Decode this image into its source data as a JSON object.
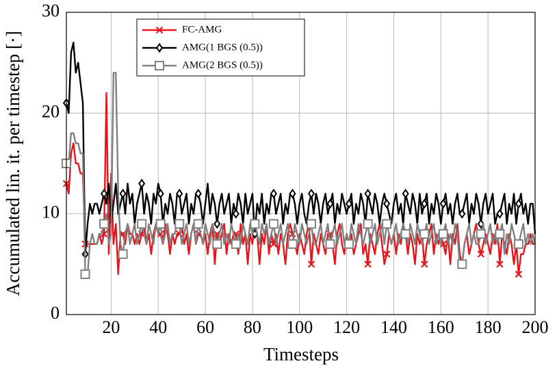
{
  "chart_data": {
    "type": "line",
    "xlabel": "Timesteps",
    "ylabel": "Accumulated lin. it. per timestep [·]",
    "x": [
      1,
      2,
      3,
      4,
      5,
      6,
      7,
      8,
      9,
      10,
      11,
      12,
      13,
      14,
      15,
      16,
      17,
      18,
      19,
      20,
      21,
      22,
      23,
      24,
      25,
      26,
      27,
      28,
      29,
      30,
      31,
      32,
      33,
      34,
      35,
      36,
      37,
      38,
      39,
      40,
      41,
      42,
      43,
      44,
      45,
      46,
      47,
      48,
      49,
      50,
      51,
      52,
      53,
      54,
      55,
      56,
      57,
      58,
      59,
      60,
      61,
      62,
      63,
      64,
      65,
      66,
      67,
      68,
      69,
      70,
      71,
      72,
      73,
      74,
      75,
      76,
      77,
      78,
      79,
      80,
      81,
      82,
      83,
      84,
      85,
      86,
      87,
      88,
      89,
      90,
      91,
      92,
      93,
      94,
      95,
      96,
      97,
      98,
      99,
      100,
      101,
      102,
      103,
      104,
      105,
      106,
      107,
      108,
      109,
      110,
      111,
      112,
      113,
      114,
      115,
      116,
      117,
      118,
      119,
      120,
      121,
      122,
      123,
      124,
      125,
      126,
      127,
      128,
      129,
      130,
      131,
      132,
      133,
      134,
      135,
      136,
      137,
      138,
      139,
      140,
      141,
      142,
      143,
      144,
      145,
      146,
      147,
      148,
      149,
      150,
      151,
      152,
      153,
      154,
      155,
      156,
      157,
      158,
      159,
      160,
      161,
      162,
      163,
      164,
      165,
      166,
      167,
      168,
      169,
      170,
      171,
      172,
      173,
      174,
      175,
      176,
      177,
      178,
      179,
      180,
      181,
      182,
      183,
      184,
      185,
      186,
      187,
      188,
      189,
      190,
      191,
      192,
      193,
      194,
      195,
      196,
      197,
      198,
      199,
      200
    ],
    "series": [
      {
        "name": "FC-AMG",
        "color": "#e8141c",
        "marker": "x",
        "values": [
          13,
          12,
          16,
          17,
          15,
          15,
          14,
          14,
          7,
          7,
          7,
          7,
          7,
          7,
          8,
          7,
          8,
          22,
          6,
          14,
          7,
          9,
          4,
          8,
          8,
          7,
          9,
          8,
          8,
          7,
          8,
          7,
          8,
          9,
          7,
          8,
          6,
          8,
          9,
          8,
          8,
          7,
          9,
          8,
          6,
          8,
          7,
          8,
          8,
          9,
          7,
          8,
          6,
          8,
          9,
          7,
          8,
          8,
          7,
          8,
          6,
          8,
          9,
          5,
          8,
          7,
          8,
          9,
          6,
          8,
          7,
          8,
          8,
          6,
          9,
          7,
          8,
          5,
          8,
          7,
          9,
          8,
          5,
          8,
          7,
          9,
          6,
          8,
          7,
          8,
          6,
          8,
          7,
          5,
          8,
          9,
          8,
          7,
          6,
          8,
          7,
          6,
          8,
          9,
          5,
          8,
          7,
          6,
          8,
          7,
          6,
          8,
          8,
          7,
          5,
          8,
          9,
          7,
          6,
          8,
          7,
          8,
          6,
          7,
          8,
          9,
          6,
          7,
          5,
          8,
          7,
          6,
          8,
          9,
          7,
          5,
          6,
          8,
          7,
          8,
          6,
          8,
          7,
          9,
          8,
          6,
          8,
          7,
          5,
          8,
          7,
          8,
          5,
          7,
          8,
          9,
          6,
          8,
          7,
          8,
          7,
          6,
          8,
          5,
          8,
          7,
          9,
          6,
          5,
          7,
          8,
          6,
          7,
          8,
          9,
          7,
          6,
          7,
          8,
          7,
          6,
          8,
          7,
          9,
          5,
          8,
          7,
          6,
          8,
          7,
          5,
          7,
          4,
          6,
          6,
          7,
          7,
          8,
          7,
          7
        ]
      },
      {
        "name": "AMG(1 BGS (0.5))",
        "color": "#000000",
        "marker": "diamond",
        "values": [
          21,
          20,
          26,
          27,
          24,
          25,
          23,
          21,
          6,
          9,
          11,
          10,
          11,
          11,
          10,
          11,
          12,
          11,
          13,
          9,
          11,
          13,
          10,
          11,
          12,
          10,
          13,
          11,
          12,
          9,
          11,
          12,
          13,
          10,
          12,
          11,
          9,
          12,
          11,
          13,
          12,
          9,
          11,
          10,
          12,
          11,
          9,
          12,
          12,
          10,
          11,
          12,
          9,
          11,
          10,
          12,
          12,
          11,
          9,
          11,
          13,
          10,
          12,
          11,
          9,
          11,
          12,
          10,
          11,
          12,
          9,
          11,
          10,
          12,
          11,
          9,
          12,
          10,
          11,
          12,
          8,
          11,
          10,
          12,
          9,
          11,
          10,
          12,
          12,
          10,
          11,
          12,
          9,
          11,
          10,
          12,
          12,
          11,
          9,
          11,
          12,
          10,
          9,
          11,
          12,
          10,
          12,
          11,
          9,
          11,
          12,
          10,
          11,
          12,
          9,
          11,
          10,
          12,
          11,
          10,
          11,
          12,
          9,
          11,
          10,
          12,
          11,
          9,
          12,
          11,
          10,
          12,
          11,
          9,
          11,
          12,
          11,
          10,
          9,
          11,
          12,
          10,
          11,
          9,
          12,
          11,
          10,
          12,
          11,
          9,
          12,
          10,
          11,
          12,
          9,
          11,
          10,
          12,
          11,
          9,
          11,
          12,
          10,
          11,
          9,
          11,
          12,
          10,
          10,
          11,
          12,
          9,
          11,
          10,
          12,
          11,
          9,
          11,
          12,
          10,
          11,
          12,
          9,
          10,
          10,
          11,
          12,
          9,
          11,
          10,
          12,
          9,
          11,
          12,
          10,
          11,
          9,
          11,
          11,
          8
        ]
      },
      {
        "name": "AMG(2 BGS (0.5))",
        "color": "#808080",
        "marker": "square",
        "values": [
          15,
          15,
          18,
          18,
          17,
          17,
          16,
          16,
          4,
          4,
          7,
          8,
          7,
          7,
          8,
          8,
          9,
          10,
          7,
          8,
          24,
          24,
          12,
          7,
          6,
          8,
          9,
          7,
          8,
          9,
          7,
          8,
          9,
          8,
          7,
          9,
          8,
          7,
          9,
          8,
          9,
          7,
          8,
          9,
          7,
          8,
          8,
          9,
          9,
          7,
          8,
          9,
          7,
          8,
          9,
          7,
          9,
          8,
          7,
          9,
          8,
          7,
          9,
          8,
          7,
          8,
          9,
          7,
          8,
          7,
          9,
          8,
          7,
          8,
          7,
          9,
          8,
          7,
          9,
          8,
          9,
          8,
          7,
          9,
          8,
          9,
          7,
          8,
          9,
          7,
          8,
          9,
          7,
          8,
          9,
          7,
          7,
          9,
          8,
          7,
          9,
          8,
          7,
          8,
          9,
          7,
          7,
          8,
          9,
          7,
          8,
          9,
          7,
          8,
          9,
          7,
          8,
          9,
          7,
          8,
          7,
          9,
          8,
          7,
          9,
          8,
          7,
          8,
          9,
          7,
          8,
          9,
          7,
          8,
          9,
          7,
          9,
          8,
          7,
          8,
          9,
          7,
          8,
          9,
          8,
          7,
          9,
          8,
          7,
          9,
          8,
          7,
          8,
          9,
          7,
          8,
          9,
          7,
          8,
          7,
          8,
          9,
          7,
          8,
          7,
          9,
          8,
          5,
          5,
          7,
          8,
          9,
          7,
          8,
          7,
          7,
          8,
          9,
          7,
          8,
          9,
          7,
          8,
          7,
          8,
          9,
          6,
          8,
          7,
          9,
          8,
          7,
          7,
          8,
          9,
          7,
          8,
          7,
          8,
          7
        ]
      }
    ],
    "marker_every": 8,
    "xlim": [
      1,
      200
    ],
    "xticks": [
      20,
      40,
      60,
      80,
      100,
      120,
      140,
      160,
      180,
      200
    ],
    "ylim": [
      0,
      30
    ],
    "yticks": [
      0,
      10,
      20,
      30
    ],
    "grid": true,
    "legend": "upper left"
  }
}
